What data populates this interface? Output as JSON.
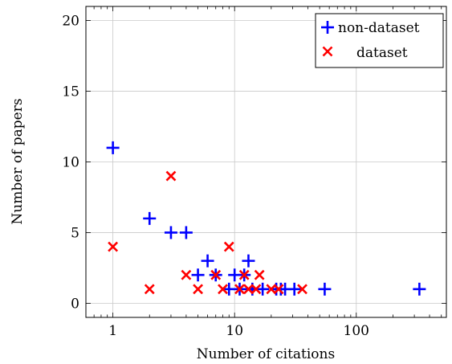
{
  "chart_data": {
    "type": "scatter",
    "xlabel": "Number of citations",
    "ylabel": "Number of papers",
    "x_scale": "log",
    "xlim": [
      0.6,
      550
    ],
    "ylim": [
      -1,
      21
    ],
    "x_ticks": [
      {
        "value": 1,
        "label": "1"
      },
      {
        "value": 10,
        "label": "10"
      },
      {
        "value": 100,
        "label": "100"
      }
    ],
    "y_ticks": [
      {
        "value": 0,
        "label": "0"
      },
      {
        "value": 5,
        "label": "5"
      },
      {
        "value": 10,
        "label": "10"
      },
      {
        "value": 15,
        "label": "15"
      },
      {
        "value": 20,
        "label": "20"
      }
    ],
    "grid": true,
    "legend_position": "top-right",
    "series": [
      {
        "name": "non-dataset",
        "marker": "plus",
        "color": "#0000ff",
        "points": [
          [
            1,
            11
          ],
          [
            2,
            6
          ],
          [
            3,
            5
          ],
          [
            4,
            5
          ],
          [
            5,
            2
          ],
          [
            6,
            3
          ],
          [
            7,
            2
          ],
          [
            9,
            1
          ],
          [
            10,
            2
          ],
          [
            11,
            1
          ],
          [
            12,
            2
          ],
          [
            13,
            3
          ],
          [
            14,
            1
          ],
          [
            17,
            1
          ],
          [
            22,
            1
          ],
          [
            24,
            1
          ],
          [
            26,
            1
          ],
          [
            31,
            1
          ],
          [
            55,
            1
          ],
          [
            330,
            1
          ]
        ]
      },
      {
        "name": "dataset",
        "marker": "cross",
        "color": "#ff0000",
        "points": [
          [
            1,
            4
          ],
          [
            2,
            1
          ],
          [
            3,
            9
          ],
          [
            4,
            2
          ],
          [
            5,
            1
          ],
          [
            7,
            2
          ],
          [
            8,
            1
          ],
          [
            9,
            4
          ],
          [
            11,
            1
          ],
          [
            12,
            2
          ],
          [
            13,
            1
          ],
          [
            15,
            1
          ],
          [
            16,
            2
          ],
          [
            20,
            1
          ],
          [
            23,
            1
          ],
          [
            36,
            1
          ]
        ]
      }
    ]
  }
}
